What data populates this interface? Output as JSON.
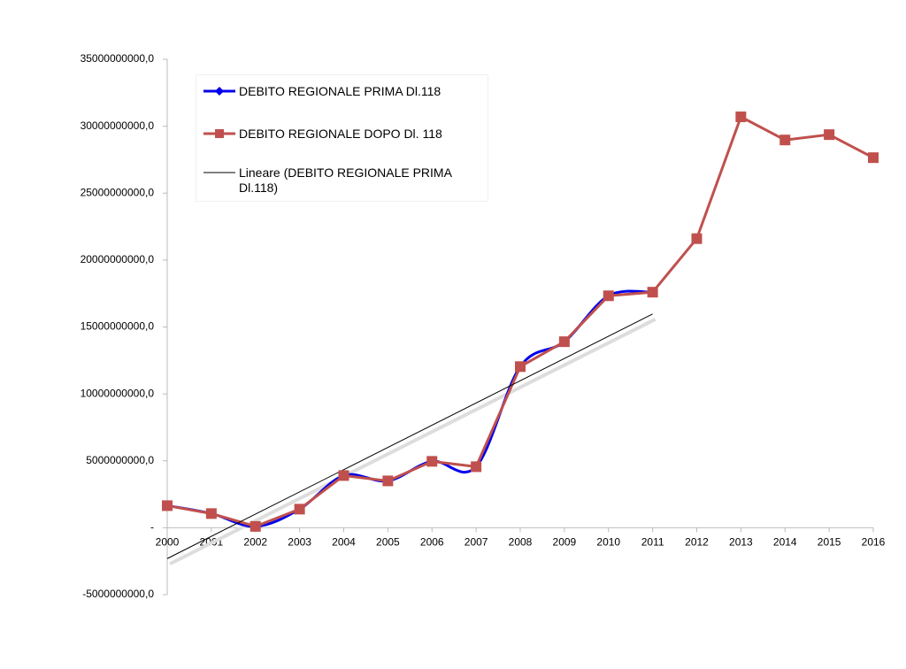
{
  "chart_data": {
    "type": "line",
    "categories": [
      "2000",
      "2001",
      "2002",
      "2003",
      "2004",
      "2005",
      "2006",
      "2007",
      "2008",
      "2009",
      "2010",
      "2011",
      "2012",
      "2013",
      "2014",
      "2015",
      "2016"
    ],
    "series": [
      {
        "name": "DEBITO REGIONALE  PRIMA Dl.118",
        "color": "#0000ee",
        "smooth": true,
        "values": [
          1650000000,
          1060000000,
          100000000,
          1390000000,
          3900000000,
          3500000000,
          4960000000,
          4560000000,
          12040000000,
          13900000000,
          17330000000,
          17600000000,
          null,
          null,
          null,
          null,
          null
        ]
      },
      {
        "name": "DEBITO REGIONALE DOPO Dl. 118",
        "color": "#c0504d",
        "values": [
          1650000000,
          1060000000,
          100000000,
          1390000000,
          3900000000,
          3500000000,
          4960000000,
          4560000000,
          12040000000,
          13900000000,
          17330000000,
          17600000000,
          21600000000,
          30700000000,
          28970000000,
          29370000000,
          27650000000
        ]
      }
    ],
    "trendline": {
      "name": "Lineare (DEBITO REGIONALE  PRIMA Dl.118)",
      "color": "#000000",
      "of_series": 0
    },
    "ylim": [
      -5000000000,
      35000000000
    ],
    "yticks": [
      {
        "value": -5000000000,
        "label": "-5000000000,0"
      },
      {
        "value": 0,
        "label": "-"
      },
      {
        "value": 5000000000,
        "label": "5000000000,0"
      },
      {
        "value": 10000000000,
        "label": "10000000000,0"
      },
      {
        "value": 15000000000,
        "label": "15000000000,0"
      },
      {
        "value": 20000000000,
        "label": "20000000000,0"
      },
      {
        "value": 25000000000,
        "label": "25000000000,0"
      },
      {
        "value": 30000000000,
        "label": "30000000000,0"
      },
      {
        "value": 35000000000,
        "label": "35000000000,0"
      }
    ]
  }
}
